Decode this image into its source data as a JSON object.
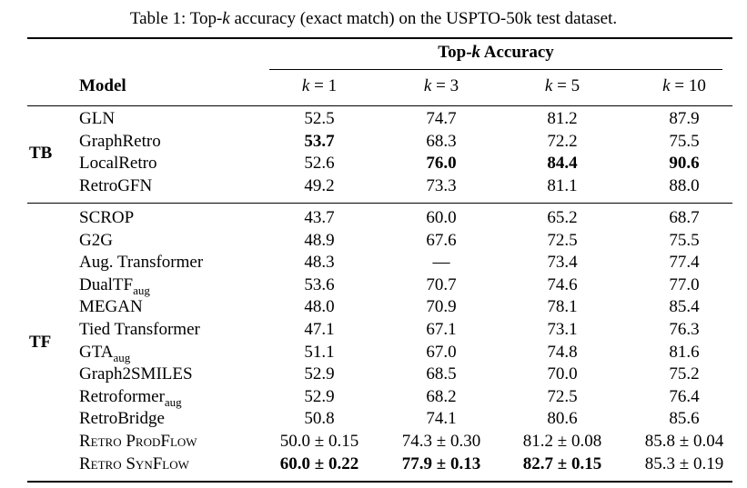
{
  "caption": {
    "prefix": "Table 1: Top-",
    "k": "k",
    "suffix": " accuracy (exact match) on the USPTO-50k test dataset."
  },
  "header": {
    "group_prefix": "Top-",
    "group_k": "k",
    "group_suffix": " Accuracy",
    "model": "Model",
    "k_values": [
      "k = 1",
      "k = 3",
      "k = 5",
      "k = 10"
    ]
  },
  "groups": [
    {
      "label": "TB",
      "rows": [
        {
          "model": "GLN",
          "sub": "",
          "vals": [
            "52.5",
            "74.7",
            "81.2",
            "87.9"
          ],
          "bold": [
            false,
            false,
            false,
            false
          ]
        },
        {
          "model": "GraphRetro",
          "sub": "",
          "vals": [
            "53.7",
            "68.3",
            "72.2",
            "75.5"
          ],
          "bold": [
            true,
            false,
            false,
            false
          ]
        },
        {
          "model": "LocalRetro",
          "sub": "",
          "vals": [
            "52.6",
            "76.0",
            "84.4",
            "90.6"
          ],
          "bold": [
            false,
            true,
            true,
            true
          ]
        },
        {
          "model": "RetroGFN",
          "sub": "",
          "vals": [
            "49.2",
            "73.3",
            "81.1",
            "88.0"
          ],
          "bold": [
            false,
            false,
            false,
            false
          ]
        }
      ]
    },
    {
      "label": "TF",
      "rows": [
        {
          "model": "SCROP",
          "sub": "",
          "vals": [
            "43.7",
            "60.0",
            "65.2",
            "68.7"
          ],
          "bold": [
            false,
            false,
            false,
            false
          ]
        },
        {
          "model": "G2G",
          "sub": "",
          "vals": [
            "48.9",
            "67.6",
            "72.5",
            "75.5"
          ],
          "bold": [
            false,
            false,
            false,
            false
          ]
        },
        {
          "model": "Aug. Transformer",
          "sub": "",
          "vals": [
            "48.3",
            "—",
            "73.4",
            "77.4"
          ],
          "bold": [
            false,
            false,
            false,
            false
          ]
        },
        {
          "model": "DualTF",
          "sub": "aug",
          "vals": [
            "53.6",
            "70.7",
            "74.6",
            "77.0"
          ],
          "bold": [
            false,
            false,
            false,
            false
          ]
        },
        {
          "model": "MEGAN",
          "sub": "",
          "vals": [
            "48.0",
            "70.9",
            "78.1",
            "85.4"
          ],
          "bold": [
            false,
            false,
            false,
            false
          ]
        },
        {
          "model": "Tied Transformer",
          "sub": "",
          "vals": [
            "47.1",
            "67.1",
            "73.1",
            "76.3"
          ],
          "bold": [
            false,
            false,
            false,
            false
          ]
        },
        {
          "model": "GTA",
          "sub": "aug",
          "vals": [
            "51.1",
            "67.0",
            "74.8",
            "81.6"
          ],
          "bold": [
            false,
            false,
            false,
            false
          ]
        },
        {
          "model": "Graph2SMILES",
          "sub": "",
          "vals": [
            "52.9",
            "68.5",
            "70.0",
            "75.2"
          ],
          "bold": [
            false,
            false,
            false,
            false
          ]
        },
        {
          "model": "Retroformer",
          "sub": "aug",
          "vals": [
            "52.9",
            "68.2",
            "72.5",
            "76.4"
          ],
          "bold": [
            false,
            false,
            false,
            false
          ]
        },
        {
          "model": "RetroBridge",
          "sub": "",
          "vals": [
            "50.8",
            "74.1",
            "80.6",
            "85.6"
          ],
          "bold": [
            false,
            false,
            false,
            false
          ]
        },
        {
          "model": "Retro ProdFlow",
          "sub": "",
          "smallcaps": true,
          "vals": [
            "50.0 ± 0.15",
            "74.3 ± 0.30",
            "81.2 ± 0.08",
            "85.8 ± 0.04"
          ],
          "bold": [
            false,
            false,
            false,
            false
          ]
        },
        {
          "model": "Retro SynFlow",
          "sub": "",
          "smallcaps": true,
          "vals": [
            "60.0 ± 0.22",
            "77.9 ± 0.13",
            "82.7 ± 0.15",
            "85.3 ± 0.19"
          ],
          "bold": [
            true,
            true,
            true,
            false
          ]
        }
      ]
    }
  ]
}
